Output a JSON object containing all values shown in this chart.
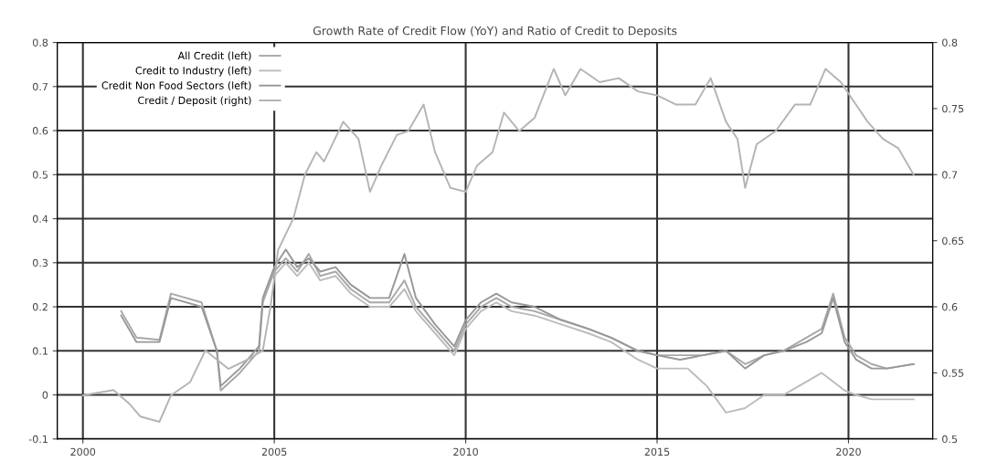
{
  "chart_data": {
    "type": "line",
    "title": "Growth Rate of Credit Flow (YoY) and Ratio of Credit to Deposits",
    "xlim": [
      1999.33,
      2022.2
    ],
    "xticks": [
      2000,
      2005,
      2010,
      2015,
      2020
    ],
    "ylim": [
      -0.1,
      0.8
    ],
    "yticks": [
      -0.1,
      0,
      0.1,
      0.2,
      0.3,
      0.4,
      0.5,
      0.6,
      0.7,
      0.8
    ],
    "y2lim": [
      0.5,
      0.8
    ],
    "y2ticks": [
      0.5,
      0.55,
      0.6,
      0.65,
      0.7,
      0.75,
      0.8
    ],
    "grid": true,
    "legend": "top left",
    "marker": "none",
    "line_style": "solid",
    "series": [
      {
        "name": "All Credit (left)",
        "color": "#a8a8a8",
        "x": [
          2001.0,
          2001.4,
          2002.0,
          2002.3,
          2003.1,
          2003.5,
          2003.6,
          2004.1,
          2004.4,
          2004.6,
          2004.7,
          2005.0,
          2005.3,
          2005.6,
          2005.9,
          2006.2,
          2006.6,
          2007.0,
          2007.5,
          2008.0,
          2008.4,
          2008.7,
          2009.2,
          2009.7,
          2010.0,
          2010.4,
          2010.8,
          2011.2,
          2011.8,
          2012.5,
          2013.2,
          2013.8,
          2014.5,
          2015.0,
          2015.6,
          2016.2,
          2016.8,
          2017.3,
          2017.8,
          2018.3,
          2018.9,
          2019.3,
          2019.6,
          2019.9,
          2020.2,
          2020.6,
          2021.0,
          2021.7
        ],
        "values": [
          0.19,
          0.13,
          0.125,
          0.23,
          0.21,
          0.1,
          0.01,
          0.05,
          0.08,
          0.1,
          0.21,
          0.28,
          0.31,
          0.28,
          0.32,
          0.27,
          0.28,
          0.24,
          0.21,
          0.21,
          0.26,
          0.2,
          0.15,
          0.1,
          0.16,
          0.2,
          0.22,
          0.2,
          0.19,
          0.17,
          0.15,
          0.13,
          0.1,
          0.09,
          0.09,
          0.09,
          0.1,
          0.07,
          0.09,
          0.1,
          0.13,
          0.15,
          0.23,
          0.13,
          0.09,
          0.07,
          0.06,
          0.07
        ]
      },
      {
        "name": "Credit to Industry (left)",
        "color": "#bcbcbc",
        "x": [
          2005.0,
          2005.3,
          2005.6,
          2005.9,
          2006.2,
          2006.6,
          2007.0,
          2007.5,
          2008.0,
          2008.4,
          2008.7,
          2009.2,
          2009.7,
          2010.0,
          2010.4,
          2010.8,
          2011.2,
          2011.8,
          2012.5,
          2013.2,
          2013.8,
          2014.5,
          2015.0,
          2015.8,
          2016.3,
          2016.8,
          2017.3,
          2017.8,
          2018.3,
          2018.9,
          2019.3,
          2019.6,
          2019.9,
          2020.2,
          2020.6,
          2021.0,
          2021.7
        ],
        "values": [
          0.27,
          0.3,
          0.27,
          0.3,
          0.26,
          0.27,
          0.23,
          0.2,
          0.2,
          0.24,
          0.19,
          0.14,
          0.09,
          0.15,
          0.19,
          0.21,
          0.19,
          0.18,
          0.16,
          0.14,
          0.12,
          0.08,
          0.06,
          0.06,
          0.02,
          -0.04,
          -0.03,
          0.0,
          0.0,
          0.03,
          0.05,
          0.03,
          0.01,
          0.0,
          -0.01,
          -0.01,
          -0.01
        ]
      },
      {
        "name": "Credit Non Food Sectors (left)",
        "color": "#989898",
        "x": [
          2001.0,
          2001.4,
          2002.0,
          2002.3,
          2003.1,
          2003.5,
          2003.6,
          2004.1,
          2004.4,
          2004.6,
          2004.7,
          2005.0,
          2005.3,
          2005.6,
          2005.9,
          2006.2,
          2006.6,
          2007.0,
          2007.5,
          2008.0,
          2008.4,
          2008.7,
          2009.2,
          2009.7,
          2010.0,
          2010.4,
          2010.8,
          2011.2,
          2011.8,
          2012.5,
          2013.2,
          2013.8,
          2014.5,
          2015.0,
          2015.6,
          2016.2,
          2016.8,
          2017.3,
          2017.8,
          2018.3,
          2018.9,
          2019.3,
          2019.6,
          2019.9,
          2020.2,
          2020.6,
          2021.0,
          2021.7
        ],
        "values": [
          0.18,
          0.12,
          0.12,
          0.22,
          0.2,
          0.1,
          0.02,
          0.06,
          0.09,
          0.11,
          0.22,
          0.29,
          0.33,
          0.29,
          0.31,
          0.28,
          0.29,
          0.25,
          0.22,
          0.22,
          0.32,
          0.22,
          0.16,
          0.11,
          0.17,
          0.21,
          0.23,
          0.21,
          0.2,
          0.17,
          0.15,
          0.13,
          0.1,
          0.09,
          0.08,
          0.09,
          0.1,
          0.06,
          0.09,
          0.1,
          0.12,
          0.14,
          0.22,
          0.12,
          0.08,
          0.06,
          0.06,
          0.07
        ]
      },
      {
        "name": "Credit / Deposit (right)",
        "color": "#b4b4b4",
        "axis": "y2",
        "x": [
          2000.0,
          2000.8,
          2001.2,
          2001.5,
          2002.0,
          2002.3,
          2002.8,
          2003.2,
          2003.8,
          2004.3,
          2004.7,
          2004.9,
          2005.1,
          2005.5,
          2005.8,
          2006.1,
          2006.3,
          2006.8,
          2007.2,
          2007.5,
          2007.8,
          2008.2,
          2008.5,
          2008.9,
          2009.2,
          2009.6,
          2010.0,
          2010.3,
          2010.7,
          2011.0,
          2011.4,
          2011.8,
          2012.3,
          2012.6,
          2013.0,
          2013.5,
          2014.0,
          2014.5,
          2015.0,
          2015.5,
          2016.0,
          2016.4,
          2016.8,
          2017.1,
          2017.3,
          2017.6,
          2018.1,
          2018.6,
          2019.0,
          2019.4,
          2019.8,
          2020.1,
          2020.5,
          2020.9,
          2021.3,
          2021.7
        ],
        "values": [
          0.533,
          0.537,
          0.527,
          0.517,
          0.513,
          0.533,
          0.543,
          0.567,
          0.553,
          0.56,
          0.567,
          0.6,
          0.643,
          0.667,
          0.7,
          0.717,
          0.71,
          0.74,
          0.727,
          0.687,
          0.707,
          0.73,
          0.733,
          0.753,
          0.717,
          0.69,
          0.687,
          0.707,
          0.717,
          0.747,
          0.733,
          0.743,
          0.78,
          0.76,
          0.78,
          0.77,
          0.773,
          0.763,
          0.76,
          0.753,
          0.753,
          0.773,
          0.74,
          0.727,
          0.69,
          0.723,
          0.733,
          0.753,
          0.753,
          0.78,
          0.77,
          0.757,
          0.74,
          0.727,
          0.72,
          0.7
        ]
      }
    ]
  }
}
